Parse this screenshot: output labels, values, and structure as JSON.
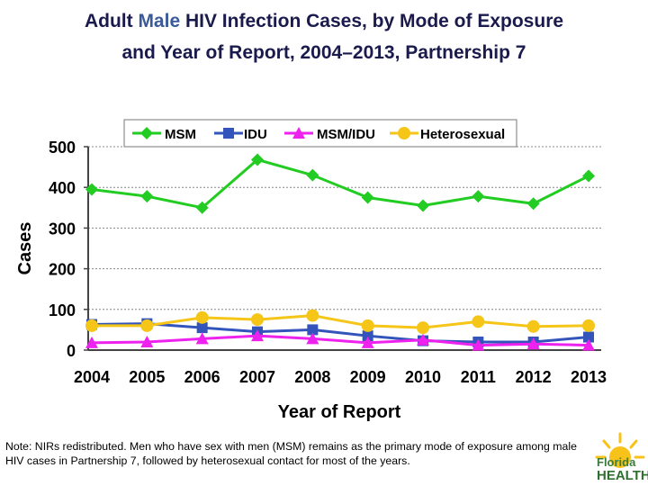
{
  "title": {
    "line1_pre": "Adult ",
    "line1_male": "Male",
    "line1_post": " HIV Infection Cases, by Mode of Exposure",
    "line2": "and Year of Report, 2004–2013, Partnership 7"
  },
  "chart_data": {
    "type": "line",
    "xlabel": "Year of Report",
    "ylabel": "Cases",
    "ylim": [
      0,
      500
    ],
    "yticks": [
      0,
      100,
      200,
      300,
      400,
      500
    ],
    "grid": true,
    "legend_position": "top",
    "categories": [
      "2004",
      "2005",
      "2006",
      "2007",
      "2008",
      "2009",
      "2010",
      "2011",
      "2012",
      "2013"
    ],
    "series": [
      {
        "name": "MSM",
        "color": "#22cc22",
        "marker": "diamond",
        "values": [
          395,
          378,
          350,
          468,
          430,
          375,
          355,
          378,
          360,
          428
        ]
      },
      {
        "name": "IDU",
        "color": "#3355bb",
        "marker": "square",
        "values": [
          63,
          65,
          55,
          45,
          50,
          35,
          23,
          20,
          20,
          32
        ]
      },
      {
        "name": "MSM/IDU",
        "color": "#ee22ee",
        "marker": "triangle",
        "values": [
          18,
          20,
          28,
          35,
          28,
          18,
          25,
          12,
          15,
          12
        ]
      },
      {
        "name": "Heterosexual",
        "color": "#f5c518",
        "marker": "circle",
        "values": [
          60,
          60,
          80,
          75,
          85,
          60,
          55,
          70,
          58,
          60
        ]
      }
    ]
  },
  "note": "Note:  NIRs redistributed.  Men who have sex with men (MSM) remains as the primary mode of exposure among male HIV cases in Partnership 7, followed by heterosexual contact for most of the years.",
  "logo": {
    "line1": "Florida",
    "line2": "HEALTH"
  }
}
